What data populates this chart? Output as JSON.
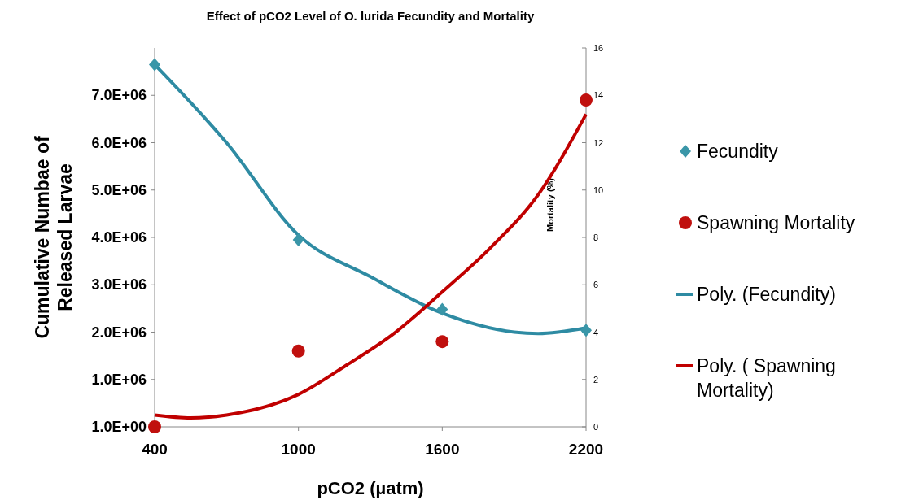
{
  "chart_data": {
    "type": "scatter",
    "title": "Effect of pCO2 Level of O. lurida Fecundity and Mortality",
    "xlabel": "pCO2  (µatm)",
    "ylabel": "Cumulative Numbae of Released Larvae",
    "y2label": "Mortality (%)",
    "x": [
      400,
      1000,
      1600,
      2200
    ],
    "series": [
      {
        "name": "Fecundity",
        "color": "#3a96a8",
        "marker": "diamond",
        "values": [
          7650000,
          3950000,
          2480000,
          2040000
        ]
      },
      {
        "name": "Spawning Mortality",
        "color": "#c0100e",
        "marker": "circle",
        "axis": "y2",
        "values": [
          0,
          3.2,
          3.6,
          13.8
        ]
      },
      {
        "name": "Poly. (Fecundity)",
        "color": "#2e8ba3",
        "type": "line",
        "x": [
          400,
          700,
          1000,
          1300,
          1600,
          1900,
          2000,
          2200
        ],
        "values": [
          7650000,
          6000000,
          4050000,
          3170000,
          2400000,
          2000000,
          1970000,
          2090000
        ]
      },
      {
        "name": "Poly. ( Spawning Mortality)",
        "color": "#c00000",
        "type": "line",
        "axis": "y2",
        "x": [
          400,
          550,
          700,
          1000,
          1200,
          1400,
          1600,
          1800,
          2000,
          2200
        ],
        "values": [
          0.5,
          0.38,
          0.5,
          1.37,
          2.6,
          3.95,
          5.7,
          7.55,
          9.8,
          13.2
        ]
      }
    ],
    "xlim": [
      400,
      2200
    ],
    "xticks": [
      400,
      1000,
      1600,
      2200
    ],
    "ylim": [
      1,
      8000000
    ],
    "yticks": [
      {
        "value": 1,
        "label": "1.0E+00"
      },
      {
        "value": 1000000,
        "label": "1.0E+06"
      },
      {
        "value": 2000000,
        "label": "2.0E+06"
      },
      {
        "value": 3000000,
        "label": "3.0E+06"
      },
      {
        "value": 4000000,
        "label": "4.0E+06"
      },
      {
        "value": 5000000,
        "label": "5.0E+06"
      },
      {
        "value": 6000000,
        "label": "6.0E+06"
      },
      {
        "value": 7000000,
        "label": "7.0E+06"
      }
    ],
    "y2lim": [
      0,
      16
    ],
    "y2ticks": [
      0,
      2,
      4,
      6,
      8,
      10,
      12,
      14,
      16
    ],
    "legend": "right",
    "grid": false
  }
}
